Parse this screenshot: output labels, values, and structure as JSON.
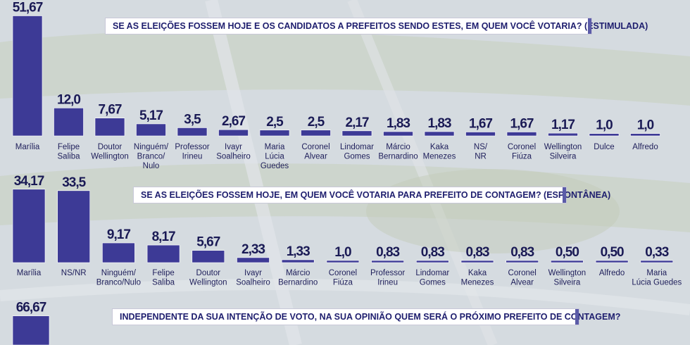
{
  "chart_data": [
    {
      "type": "bar",
      "title": "SE AS ELEIÇÕES FOSSEM HOJE E OS CANDIDATOS A PREFEITOS SENDO ESTES, EM QUEM VOCÊ VOTARIA? (ESTIMULADA)",
      "categories": [
        "Marília",
        "Felipe Saliba",
        "Doutor Wellington",
        "Ninguém/ Branco/ Nulo",
        "Professor Irineu",
        "Ivayr Soalheiro",
        "Maria Lúcia Guedes",
        "Coronel Alvear",
        "Lindomar Gomes",
        "Márcio Bernardino",
        "Kaka Menezes",
        "NS/ NR",
        "Coronel Fiúza",
        "Wellington Silveira",
        "Dulce",
        "Alfredo"
      ],
      "category_lines": [
        [
          "Marília"
        ],
        [
          "Felipe",
          "Saliba"
        ],
        [
          "Doutor",
          "Wellington"
        ],
        [
          "Ninguém/",
          "Branco/",
          "Nulo"
        ],
        [
          "Professor",
          "Irineu"
        ],
        [
          "Ivayr",
          "Soalheiro"
        ],
        [
          "Maria",
          "Lúcia",
          "Guedes"
        ],
        [
          "Coronel",
          "Alvear"
        ],
        [
          "Lindomar",
          "Gomes"
        ],
        [
          "Márcio",
          "Bernardino"
        ],
        [
          "Kaka",
          "Menezes"
        ],
        [
          "NS/",
          "NR"
        ],
        [
          "Coronel",
          "Fiúza"
        ],
        [
          "Wellington",
          "Silveira"
        ],
        [
          "Dulce"
        ],
        [
          "Alfredo"
        ]
      ],
      "values": [
        51.67,
        12.0,
        7.67,
        5.17,
        3.5,
        2.67,
        2.5,
        2.5,
        2.17,
        1.83,
        1.83,
        1.67,
        1.67,
        1.17,
        1.0,
        1.0
      ],
      "value_labels": [
        "51,67",
        "12,0",
        "7,67",
        "5,17",
        "3,5",
        "2,67",
        "2,5",
        "2,5",
        "2,17",
        "1,83",
        "1,83",
        "1,67",
        "1,67",
        "1,17",
        "1,0",
        "1,0"
      ],
      "color": "#3d3a96"
    },
    {
      "type": "bar",
      "title": "SE AS ELEIÇÕES FOSSEM HOJE, EM QUEM VOCÊ VOTARIA PARA PREFEITO DE CONTAGEM? (ESPONTÂNEA)",
      "categories": [
        "Marília",
        "NS/NR",
        "Ninguém/ Branco/Nulo",
        "Felipe Saliba",
        "Doutor Wellington",
        "Ivayr Soalheiro",
        "Márcio Bernardino",
        "Coronel Fiúza",
        "Professor Irineu",
        "Lindomar Gomes",
        "Kaka Menezes",
        "Coronel Alvear",
        "Wellington Silveira",
        "Alfredo",
        "Maria Lúcia Guedes"
      ],
      "category_lines": [
        [
          "Marília"
        ],
        [
          "NS/NR"
        ],
        [
          "Ninguém/",
          "Branco/Nulo"
        ],
        [
          "Felipe",
          "Saliba"
        ],
        [
          "Doutor",
          "Wellington"
        ],
        [
          "Ivayr",
          "Soalheiro"
        ],
        [
          "Márcio",
          "Bernardino"
        ],
        [
          "Coronel",
          "Fiúza"
        ],
        [
          "Professor",
          "Irineu"
        ],
        [
          "Lindomar",
          "Gomes"
        ],
        [
          "Kaka",
          "Menezes"
        ],
        [
          "Coronel",
          "Alvear"
        ],
        [
          "Wellington",
          "Silveira"
        ],
        [
          "Alfredo"
        ],
        [
          "Maria",
          "Lúcia Guedes"
        ]
      ],
      "values": [
        34.17,
        33.5,
        9.17,
        8.17,
        5.67,
        2.33,
        1.33,
        1.0,
        0.83,
        0.83,
        0.83,
        0.83,
        0.5,
        0.5,
        0.33
      ],
      "value_labels": [
        "34,17",
        "33,5",
        "9,17",
        "8,17",
        "5,67",
        "2,33",
        "1,33",
        "1,0",
        "0,83",
        "0,83",
        "0,83",
        "0,83",
        "0,50",
        "0,50",
        "0,33"
      ],
      "color": "#3d3a96"
    },
    {
      "type": "bar",
      "title": "INDEPENDENTE DA SUA INTENÇÃO DE VOTO, NA SUA OPINIÃO QUEM SERÁ O PRÓXIMO PREFEITO DE CONTAGEM?",
      "categories": [
        ""
      ],
      "category_lines": [
        []
      ],
      "values": [
        66.67
      ],
      "value_labels": [
        "66,67"
      ],
      "color": "#3d3a96"
    }
  ]
}
